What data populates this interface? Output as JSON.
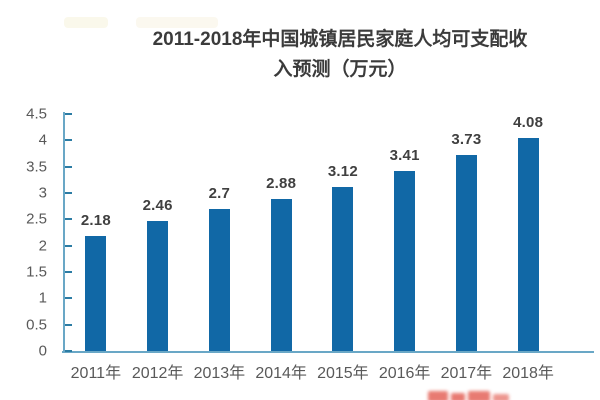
{
  "chart_data": {
    "type": "bar",
    "title": "2011-2018年中国城镇居民家庭人均可支配收入预测（万元）",
    "title_lines": [
      "2011-2018年中国城镇居民家庭人均可支配收",
      "入预测（万元）"
    ],
    "categories": [
      "2011年",
      "2012年",
      "2013年",
      "2014年",
      "2015年",
      "2016年",
      "2017年",
      "2018年"
    ],
    "values": [
      2.18,
      2.46,
      2.7,
      2.88,
      3.12,
      3.41,
      3.73,
      4.08
    ],
    "value_labels": [
      "2.18",
      "2.46",
      "2.7",
      "2.88",
      "3.12",
      "3.41",
      "3.73",
      "4.08"
    ],
    "xlabel": "",
    "ylabel": "",
    "ylim": [
      0,
      4.5
    ],
    "y_tick_step": 0.5,
    "y_tick_labels": [
      "0",
      "0.5",
      "1",
      "1.5",
      "2",
      "2.5",
      "3",
      "3.5",
      "4",
      "4.5"
    ],
    "grid": false,
    "legend": "none",
    "colors": {
      "bar": "#1168a6",
      "axis_line": "#69a7c6",
      "tick": "#2c7ca4",
      "title_text": "#3b3b3b",
      "value_label_text": "#404040",
      "axis_text": "#595959",
      "watermark": "#e0483c"
    }
  }
}
